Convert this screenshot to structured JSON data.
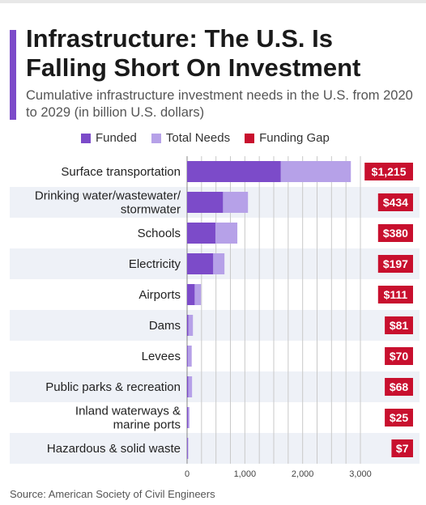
{
  "header": {
    "title": "Infrastructure: The U.S. Is Falling Short On Investment",
    "subtitle": "Cumulative infrastructure investment needs in the U.S. from 2020 to 2029 (in billion U.S. dollars)"
  },
  "source": "Source: American Society of Civil Engineers",
  "colors": {
    "funded": "#7c4bc9",
    "total_needs": "#b6a1e8",
    "funding_gap": "#c8102e",
    "accent": "#7c4bc9",
    "band": "#eef1f7"
  },
  "chart_data": {
    "type": "bar",
    "orientation": "horizontal",
    "title": "Infrastructure: The U.S. Is Falling Short On Investment",
    "subtitle": "Cumulative infrastructure investment needs in the U.S. from 2020 to 2029 (in billion U.S. dollars)",
    "legend": [
      "Funded",
      "Total Needs",
      "Funding Gap"
    ],
    "legend_position": "top",
    "xlim": [
      0,
      3000
    ],
    "xticks": [
      0,
      1000,
      2000,
      3000
    ],
    "xtick_labels": [
      "0",
      "1,000",
      "2,000",
      "3,000"
    ],
    "grid": true,
    "categories": [
      "Surface transportation",
      "Drinking water/wastewater/\nstormwater",
      "Schools",
      "Electricity",
      "Airports",
      "Dams",
      "Levees",
      "Public parks & recreation",
      "Inland waterways &\nmarine ports",
      "Hazardous & solid waste"
    ],
    "series": [
      {
        "name": "Funded",
        "values": [
          1620,
          620,
          490,
          450,
          130,
          20,
          10,
          18,
          15,
          10
        ]
      },
      {
        "name": "Total Needs",
        "values": [
          2835,
          1054,
          870,
          647,
          241,
          101,
          80,
          86,
          40,
          17
        ]
      },
      {
        "name": "Funding Gap",
        "values": [
          1215,
          434,
          380,
          197,
          111,
          81,
          70,
          68,
          25,
          7
        ]
      }
    ],
    "gap_labels": [
      "$1,215",
      "$434",
      "$380",
      "$197",
      "$111",
      "$81",
      "$70",
      "$68",
      "$25",
      "$7"
    ]
  }
}
